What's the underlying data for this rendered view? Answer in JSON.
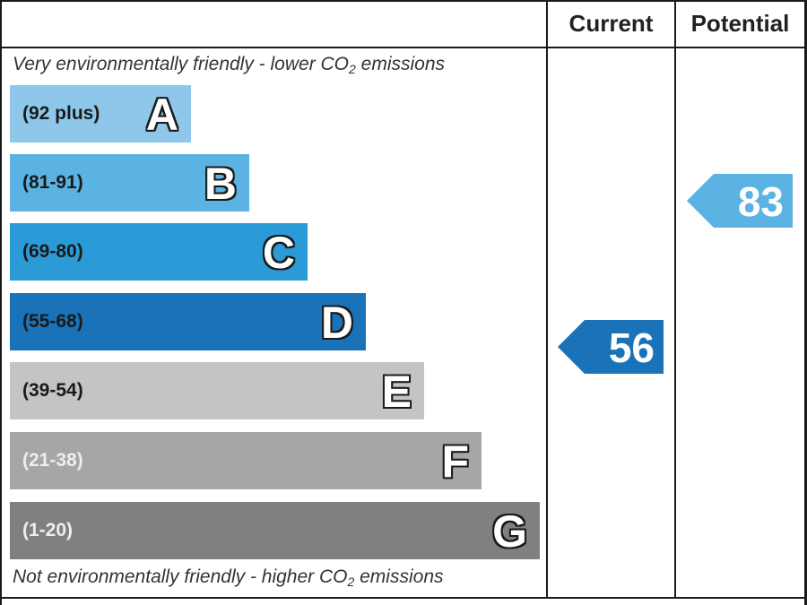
{
  "headers": {
    "current": "Current",
    "potential": "Potential"
  },
  "captions": {
    "top_prefix": "Very environmentally friendly - lower CO",
    "top_sub": "2",
    "top_suffix": " emissions",
    "bottom_prefix": "Not environmentally friendly - higher CO",
    "bottom_sub": "2",
    "bottom_suffix": " emissions"
  },
  "chart_data": {
    "type": "bar",
    "categories": [
      "A",
      "B",
      "C",
      "D",
      "E",
      "F",
      "G"
    ],
    "bands": [
      {
        "letter": "A",
        "range": "(92 plus)",
        "min": 92,
        "max": null,
        "color": "#8ec7ea",
        "range_color": "#1a1a1a"
      },
      {
        "letter": "B",
        "range": "(81-91)",
        "min": 81,
        "max": 91,
        "color": "#5bb3e3",
        "range_color": "#1a1a1a"
      },
      {
        "letter": "C",
        "range": "(69-80)",
        "min": 69,
        "max": 80,
        "color": "#2b9bd8",
        "range_color": "#1a1a1a"
      },
      {
        "letter": "D",
        "range": "(55-68)",
        "min": 55,
        "max": 68,
        "color": "#1a73b8",
        "range_color": "#1a1a1a"
      },
      {
        "letter": "E",
        "range": "(39-54)",
        "min": 39,
        "max": 54,
        "color": "#c4c4c4",
        "range_color": "#1a1a1a"
      },
      {
        "letter": "F",
        "range": "(21-38)",
        "min": 21,
        "max": 38,
        "color": "#a6a6a6",
        "range_color": "#eeeeee"
      },
      {
        "letter": "G",
        "range": "(1-20)",
        "min": 1,
        "max": 20,
        "color": "#808080",
        "range_color": "#eeeeee"
      }
    ],
    "current": {
      "value": 56,
      "band": "D",
      "color": "#1a73b8"
    },
    "potential": {
      "value": 83,
      "band": "B",
      "color": "#5bb3e3"
    }
  }
}
